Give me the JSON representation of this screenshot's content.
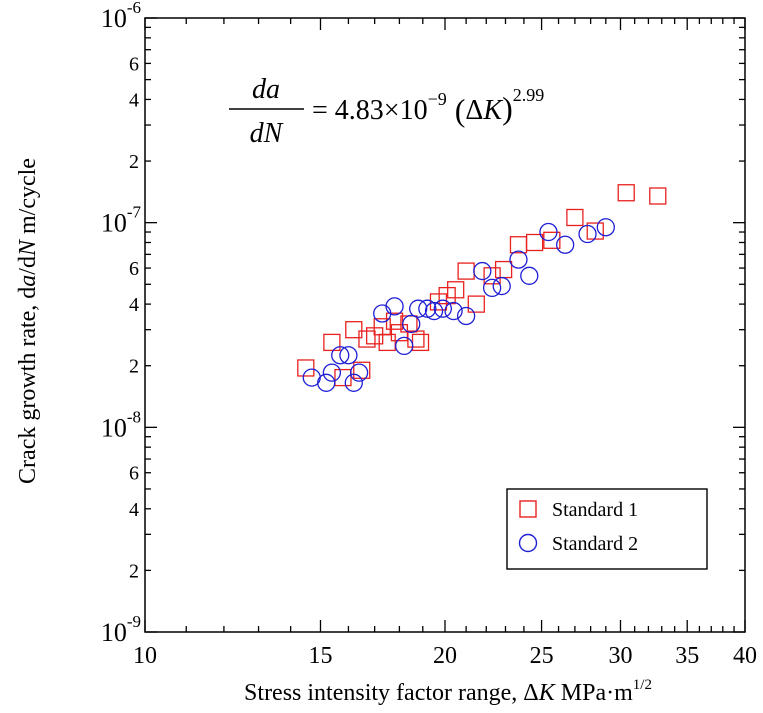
{
  "chart_data": {
    "type": "scatter",
    "xscale": "log",
    "yscale": "log",
    "xlim": [
      10,
      40
    ],
    "ylim": [
      1e-09,
      1e-06
    ],
    "xlabel": {
      "prefix": "Stress intensity factor range, Δ",
      "var": "K",
      "unit": " MPa",
      "dot": "·",
      "m": "m",
      "sup": "1/2"
    },
    "ylabel": {
      "prefix": "Crack growth rate, d",
      "a": "a",
      "slash": "/d",
      "N": "N",
      "unit": " m/cycle"
    },
    "x_ticks": [
      {
        "value": 10,
        "label": "10"
      },
      {
        "value": 15,
        "label": "15"
      },
      {
        "value": 20,
        "label": "20"
      },
      {
        "value": 25,
        "label": "25"
      },
      {
        "value": 30,
        "label": "30"
      },
      {
        "value": 35,
        "label": "35"
      },
      {
        "value": 40,
        "label": "40"
      }
    ],
    "y_decades": [
      {
        "value": 1e-09,
        "base": "10",
        "exp": "-9"
      },
      {
        "value": 1e-08,
        "base": "10",
        "exp": "-8"
      },
      {
        "value": 1e-07,
        "base": "10",
        "exp": "-7"
      },
      {
        "value": 1e-06,
        "base": "10",
        "exp": "-6"
      }
    ],
    "y_minor_labels": [
      "2",
      "4",
      "6"
    ],
    "equation": {
      "num": "da",
      "den": "dN",
      "eq": "= 4.83×10",
      "exp": "−9",
      "lp": "(",
      "delta": "Δ",
      "K": "K",
      "rp": ")",
      "pow": "2.99"
    },
    "fit": {
      "coefficient": 4.83e-09,
      "exponent": 2.99,
      "color": "#8ef08e"
    },
    "legend_position": "bottom-right",
    "series": [
      {
        "name": "Standard 1",
        "marker": "square",
        "color": "#e8211f",
        "points": [
          [
            14.5,
            1.95e-08
          ],
          [
            15.4,
            2.6e-08
          ],
          [
            15.8,
            1.75e-08
          ],
          [
            16.2,
            3e-08
          ],
          [
            16.5,
            1.9e-08
          ],
          [
            16.7,
            2.7e-08
          ],
          [
            17.0,
            2.8e-08
          ],
          [
            17.3,
            3.1e-08
          ],
          [
            17.5,
            2.6e-08
          ],
          [
            17.8,
            3.3e-08
          ],
          [
            18.0,
            2.9e-08
          ],
          [
            18.4,
            3.2e-08
          ],
          [
            18.7,
            2.7e-08
          ],
          [
            18.9,
            2.6e-08
          ],
          [
            19.7,
            4.1e-08
          ],
          [
            20.1,
            4.4e-08
          ],
          [
            20.5,
            4.7e-08
          ],
          [
            21.0,
            5.8e-08
          ],
          [
            21.5,
            4e-08
          ],
          [
            22.3,
            5.5e-08
          ],
          [
            22.9,
            5.9e-08
          ],
          [
            23.7,
            7.8e-08
          ],
          [
            24.6,
            8e-08
          ],
          [
            25.6,
            8.2e-08
          ],
          [
            27.0,
            1.06e-07
          ],
          [
            28.3,
            9.1e-08
          ],
          [
            30.4,
            1.4e-07
          ],
          [
            32.7,
            1.35e-07
          ]
        ]
      },
      {
        "name": "Standard 2",
        "marker": "circle",
        "color": "#1f1fd6",
        "points": [
          [
            14.7,
            1.75e-08
          ],
          [
            15.2,
            1.65e-08
          ],
          [
            15.4,
            1.85e-08
          ],
          [
            15.7,
            2.25e-08
          ],
          [
            16.0,
            2.25e-08
          ],
          [
            16.2,
            1.65e-08
          ],
          [
            16.4,
            1.85e-08
          ],
          [
            17.3,
            3.6e-08
          ],
          [
            17.8,
            3.9e-08
          ],
          [
            18.2,
            2.5e-08
          ],
          [
            18.5,
            3.2e-08
          ],
          [
            18.8,
            3.8e-08
          ],
          [
            19.2,
            3.8e-08
          ],
          [
            19.5,
            3.7e-08
          ],
          [
            19.9,
            3.8e-08
          ],
          [
            20.4,
            3.7e-08
          ],
          [
            21.0,
            3.5e-08
          ],
          [
            21.8,
            5.8e-08
          ],
          [
            22.3,
            4.8e-08
          ],
          [
            22.8,
            4.9e-08
          ],
          [
            23.7,
            6.6e-08
          ],
          [
            24.3,
            5.5e-08
          ],
          [
            25.4,
            9e-08
          ],
          [
            26.4,
            7.8e-08
          ],
          [
            27.8,
            8.8e-08
          ],
          [
            29.0,
            9.5e-08
          ]
        ]
      }
    ]
  }
}
